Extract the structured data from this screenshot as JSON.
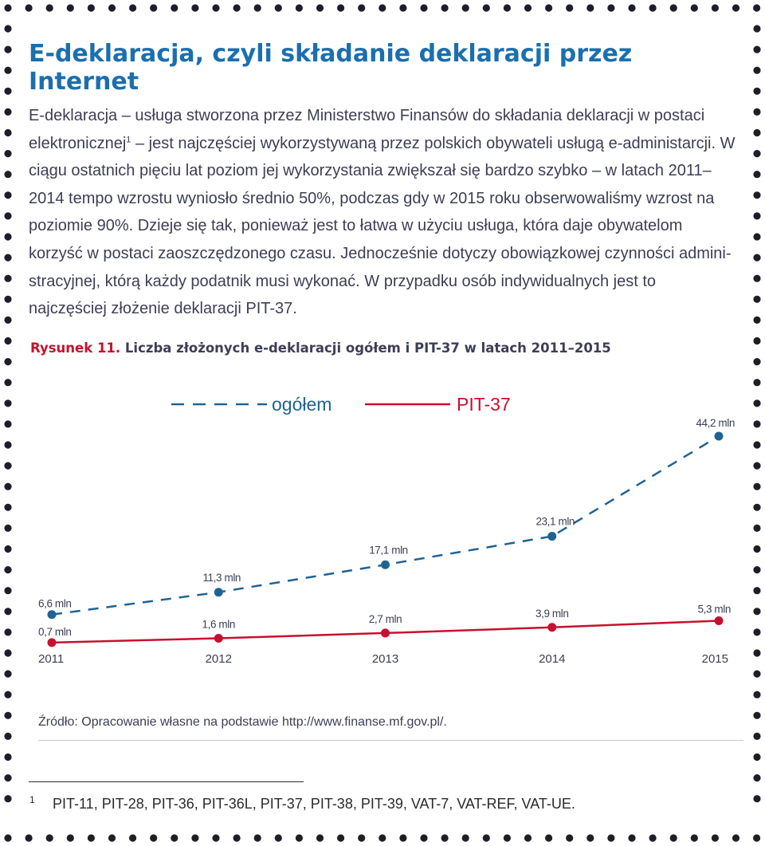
{
  "page": {
    "title": "E-deklaracja, czyli składanie deklaracji przez Internet",
    "paragraph_part1": "E-deklaracja – usługa stworzona przez Ministerstwo Finansów do składania deklaracji w postaci elektronicznej",
    "paragraph_footnote_ref": "1",
    "paragraph_part2": " – jest najczęściej wykorzystywaną przez polskich obywateli usługą e-administarcji. W ciągu ostatnich pięciu lat poziom jej wykorzystania zwiększał się bardzo szybko – w latach 2011–2014 tempo wzrostu wyniosło średnio 50%, podczas gdy w 2015 roku obserwowaliśmy wzrost na poziomie 90%. Dzieje się tak, ponieważ jest to łatwa w użyciu usługa, która daje obywatelom korzyść w postaci zaoszczędzonego czasu. Jednocześnie dotyczy obowiązkowej czynności admini-stracyjnej, którą każdy podatnik musi wykonać. W przypadku osób indywidualnych jest to najczęściej złożenie deklaracji PIT-37."
  },
  "figure": {
    "label": "Rysunek 11.",
    "caption": "Liczba złożonych e-deklaracji ogółem i PIT-37 w latach 2011–2015"
  },
  "chart_data": {
    "type": "line",
    "categories": [
      "2011",
      "2012",
      "2013",
      "2014",
      "2015"
    ],
    "series": [
      {
        "name": "ogółem",
        "values": [
          6.6,
          11.3,
          17.1,
          23.1,
          44.2
        ],
        "labels": [
          "6,6 mln",
          "11,3 mln",
          "17,1 mln",
          "23,1 mln",
          "44,2 mln"
        ],
        "color": "#1f6394",
        "style": "dashed"
      },
      {
        "name": "PIT-37",
        "values": [
          0.7,
          1.6,
          2.7,
          3.9,
          5.3
        ],
        "labels": [
          "0,7 mln",
          "1,6 mln",
          "2,7 mln",
          "3,9 mln",
          "5,3 mln"
        ],
        "color": "#c8102e",
        "style": "solid"
      }
    ],
    "ylabel": "",
    "xlabel": "",
    "ylim": [
      0,
      44.2
    ],
    "legend_position": "top-center",
    "grid": false
  },
  "source": "Źródło: Opracowanie własne na podstawie http://www.finanse.mf.gov.pl/.",
  "footnote": {
    "mark": "1",
    "text": "PIT-11, PIT-28, PIT-36, PIT-36L, PIT-37, PIT-38, PIT-39, VAT-7, VAT-REF, VAT-UE."
  },
  "colors": {
    "title": "#1b6fae",
    "frame_dots": "#1e1e2a",
    "figure_label": "#c8102e"
  }
}
